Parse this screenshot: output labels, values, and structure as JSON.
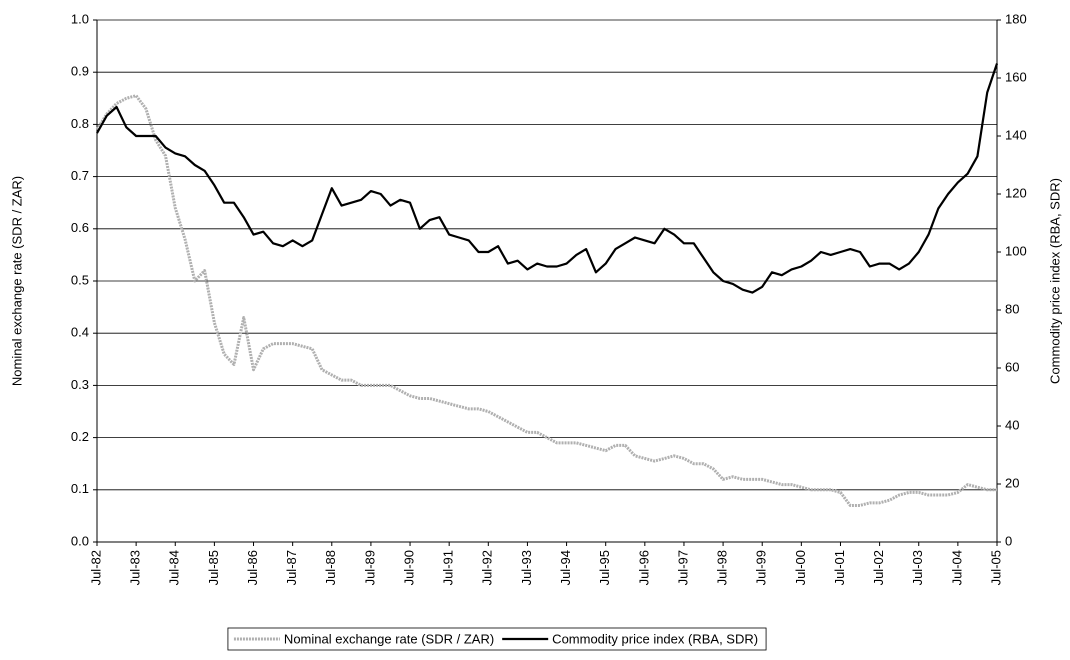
{
  "chart_data": {
    "type": "line",
    "y_label": "Nominal exchange rate (SDR / ZAR)",
    "y2_label": "Commodity price index (RBA, SDR)",
    "x": [
      1982.5,
      1982.75,
      1983,
      1983.25,
      1983.5,
      1983.75,
      1984,
      1984.25,
      1984.5,
      1984.75,
      1985,
      1985.25,
      1985.5,
      1985.75,
      1986,
      1986.25,
      1986.5,
      1986.75,
      1987,
      1987.25,
      1987.5,
      1987.75,
      1988,
      1988.25,
      1988.5,
      1988.75,
      1989,
      1989.25,
      1989.5,
      1989.75,
      1990,
      1990.25,
      1990.5,
      1990.75,
      1991,
      1991.25,
      1991.5,
      1991.75,
      1992,
      1992.25,
      1992.5,
      1992.75,
      1993,
      1993.25,
      1993.5,
      1993.75,
      1994,
      1994.25,
      1994.5,
      1994.75,
      1995,
      1995.25,
      1995.5,
      1995.75,
      1996,
      1996.25,
      1996.5,
      1996.75,
      1997,
      1997.25,
      1997.5,
      1997.75,
      1998,
      1998.25,
      1998.5,
      1998.75,
      1999,
      1999.25,
      1999.5,
      1999.75,
      2000,
      2000.25,
      2000.5,
      2000.75,
      2001,
      2001.25,
      2001.5,
      2001.75,
      2002,
      2002.25,
      2002.5,
      2002.75,
      2003,
      2003.25,
      2003.5,
      2003.75,
      2004,
      2004.25,
      2004.5,
      2004.75,
      2005,
      2005.25,
      2005.5
    ],
    "series": [
      {
        "name": "Nominal exchange rate (SDR / ZAR)",
        "color": "#b0b0b0",
        "axis": "y",
        "values": [
          0.79,
          0.82,
          0.84,
          0.85,
          0.855,
          0.83,
          0.77,
          0.74,
          0.64,
          0.58,
          0.5,
          0.52,
          0.42,
          0.36,
          0.34,
          0.43,
          0.33,
          0.37,
          0.38,
          0.38,
          0.38,
          0.375,
          0.37,
          0.33,
          0.32,
          0.31,
          0.31,
          0.3,
          0.3,
          0.3,
          0.3,
          0.29,
          0.28,
          0.275,
          0.275,
          0.27,
          0.265,
          0.26,
          0.255,
          0.255,
          0.25,
          0.24,
          0.23,
          0.22,
          0.21,
          0.21,
          0.2,
          0.19,
          0.19,
          0.19,
          0.185,
          0.18,
          0.175,
          0.185,
          0.185,
          0.165,
          0.16,
          0.155,
          0.16,
          0.165,
          0.16,
          0.15,
          0.15,
          0.14,
          0.12,
          0.125,
          0.12,
          0.12,
          0.12,
          0.115,
          0.11,
          0.11,
          0.105,
          0.1,
          0.1,
          0.1,
          0.095,
          0.07,
          0.07,
          0.075,
          0.075,
          0.08,
          0.09,
          0.095,
          0.095,
          0.09,
          0.09,
          0.09,
          0.095,
          0.11,
          0.105,
          0.1,
          0.1
        ]
      },
      {
        "name": "Commodity price index (RBA, SDR)",
        "color": "#000000",
        "axis": "y2",
        "values": [
          141,
          147,
          150,
          143,
          140,
          140,
          140,
          136,
          134,
          133,
          130,
          128,
          123,
          117,
          117,
          112,
          106,
          107,
          103,
          102,
          104,
          102,
          104,
          113,
          122,
          116,
          117,
          118,
          121,
          120,
          116,
          118,
          117,
          108,
          111,
          112,
          106,
          105,
          104,
          100,
          100,
          102,
          96,
          97,
          94,
          96,
          95,
          95,
          96,
          99,
          101,
          93,
          96,
          101,
          103,
          105,
          104,
          103,
          108,
          106,
          103,
          103,
          98,
          93,
          90,
          89,
          87,
          86,
          88,
          93,
          92,
          94,
          95,
          97,
          100,
          99,
          100,
          101,
          100,
          95,
          96,
          96,
          94,
          96,
          100,
          106,
          115,
          120,
          124,
          127,
          133,
          155,
          165
        ]
      }
    ],
    "xlim": [
      1982.5,
      2005.5
    ],
    "xticks": [
      {
        "value": 1982.5,
        "label": "Jul-82"
      },
      {
        "value": 1983.5,
        "label": "Jul-83"
      },
      {
        "value": 1984.5,
        "label": "Jul-84"
      },
      {
        "value": 1985.5,
        "label": "Jul-85"
      },
      {
        "value": 1986.5,
        "label": "Jul-86"
      },
      {
        "value": 1987.5,
        "label": "Jul-87"
      },
      {
        "value": 1988.5,
        "label": "Jul-88"
      },
      {
        "value": 1989.5,
        "label": "Jul-89"
      },
      {
        "value": 1990.5,
        "label": "Jul-90"
      },
      {
        "value": 1991.5,
        "label": "Jul-91"
      },
      {
        "value": 1992.5,
        "label": "Jul-92"
      },
      {
        "value": 1993.5,
        "label": "Jul-93"
      },
      {
        "value": 1994.5,
        "label": "Jul-94"
      },
      {
        "value": 1995.5,
        "label": "Jul-95"
      },
      {
        "value": 1996.5,
        "label": "Jul-96"
      },
      {
        "value": 1997.5,
        "label": "Jul-97"
      },
      {
        "value": 1998.5,
        "label": "Jul-98"
      },
      {
        "value": 1999.5,
        "label": "Jul-99"
      },
      {
        "value": 2000.5,
        "label": "Jul-00"
      },
      {
        "value": 2001.5,
        "label": "Jul-01"
      },
      {
        "value": 2002.5,
        "label": "Jul-02"
      },
      {
        "value": 2003.5,
        "label": "Jul-03"
      },
      {
        "value": 2004.5,
        "label": "Jul-04"
      },
      {
        "value": 2005.5,
        "label": "Jul-05"
      }
    ],
    "ylim": [
      0,
      1
    ],
    "yticks": [
      {
        "value": 0,
        "label": "0.0"
      },
      0.1,
      0.2,
      0.3,
      0.4,
      0.5,
      0.6,
      0.7,
      0.8,
      0.9,
      {
        "value": 1,
        "label": "1.0"
      }
    ],
    "y2lim": [
      0,
      180
    ],
    "y2ticks": [
      0,
      20,
      40,
      60,
      80,
      100,
      120,
      140,
      160,
      180
    ],
    "grid": true,
    "legend": "bottom"
  }
}
